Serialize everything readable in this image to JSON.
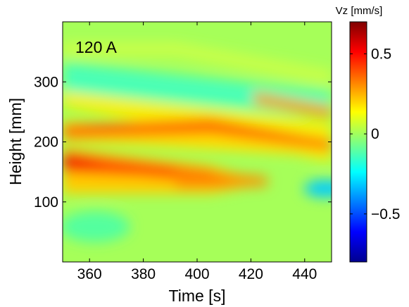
{
  "chart_data": {
    "type": "heatmap",
    "title": "",
    "annotation": "120 A",
    "xlabel": "Time [s]",
    "ylabel": "Height [mm]",
    "xlim": [
      350,
      450
    ],
    "ylim": [
      0,
      400
    ],
    "xticks": [
      360,
      380,
      400,
      420,
      440
    ],
    "yticks": [
      100,
      200,
      300
    ],
    "colorbar": {
      "title": "Vz [mm/s]",
      "colormap": "jet",
      "clim": [
        -0.8,
        0.7
      ],
      "ticks": [
        -0.5,
        0,
        0.5
      ],
      "tick_labels": [
        "−0.5",
        "0",
        "0.5"
      ]
    },
    "features": [
      {
        "kind": "band",
        "height_at_350": 165,
        "height_at_450": 140,
        "peak_vz": 0.6
      },
      {
        "kind": "band",
        "height_at_350": 220,
        "height_at_450": 185,
        "peak_vz": 0.45
      },
      {
        "kind": "band",
        "height_at_350": 300,
        "height_at_450": 225,
        "peak_vz": 0.15
      },
      {
        "kind": "band",
        "height_at_350": 330,
        "height_at_450": 290,
        "peak_vz": -0.15
      },
      {
        "kind": "blob",
        "time": 447,
        "height": 122,
        "vz": -0.3
      },
      {
        "kind": "blob",
        "time": 368,
        "height": 60,
        "vz": -0.15
      }
    ]
  }
}
